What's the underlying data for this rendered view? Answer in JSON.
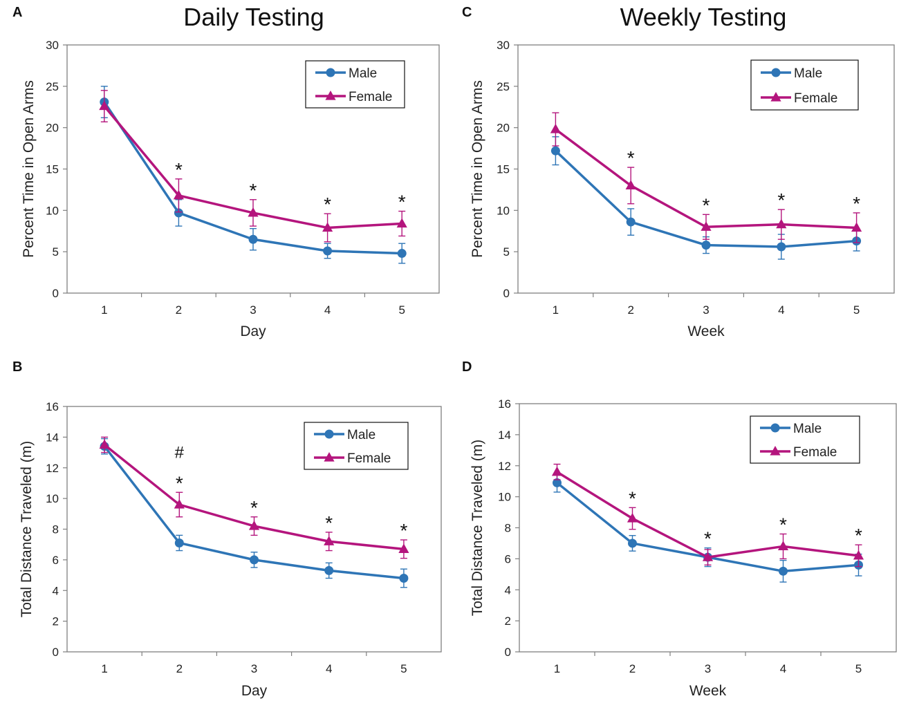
{
  "figure": {
    "column_titles": [
      "Daily Testing",
      "Weekly Testing"
    ],
    "colors": {
      "male": "#2e75b6",
      "female": "#b4157d"
    }
  },
  "chart_data": [
    {
      "panel": "A",
      "type": "line",
      "title": "Daily Testing",
      "xlabel": "Day",
      "ylabel": "Percent Time in Open Arms",
      "categories": [
        "1",
        "2",
        "3",
        "4",
        "5"
      ],
      "ylim": [
        0,
        30
      ],
      "yticks": [
        0,
        5,
        10,
        15,
        20,
        25,
        30
      ],
      "legend": "top-right",
      "series": [
        {
          "name": "Male",
          "marker": "circle",
          "values": [
            23.1,
            9.7,
            6.5,
            5.1,
            4.8
          ],
          "errors": [
            1.9,
            1.6,
            1.3,
            0.9,
            1.2
          ]
        },
        {
          "name": "Female",
          "marker": "triangle",
          "values": [
            22.6,
            11.8,
            9.7,
            7.9,
            8.4
          ],
          "errors": [
            1.9,
            2.0,
            1.6,
            1.7,
            1.5
          ]
        }
      ],
      "annotations": [
        {
          "category": "2",
          "text": "*"
        },
        {
          "category": "3",
          "text": "*"
        },
        {
          "category": "4",
          "text": "*"
        },
        {
          "category": "5",
          "text": "*"
        }
      ]
    },
    {
      "panel": "B",
      "type": "line",
      "title": "",
      "xlabel": "Day",
      "ylabel": "Total Distance Traveled (m)",
      "categories": [
        "1",
        "2",
        "3",
        "4",
        "5"
      ],
      "ylim": [
        0,
        16
      ],
      "yticks": [
        0,
        2,
        4,
        6,
        8,
        10,
        12,
        14,
        16
      ],
      "legend": "top-right",
      "series": [
        {
          "name": "Male",
          "marker": "circle",
          "values": [
            13.4,
            7.1,
            6.0,
            5.3,
            4.8
          ],
          "errors": [
            0.5,
            0.5,
            0.5,
            0.5,
            0.6
          ]
        },
        {
          "name": "Female",
          "marker": "triangle",
          "values": [
            13.5,
            9.6,
            8.2,
            7.2,
            6.7
          ],
          "errors": [
            0.5,
            0.8,
            0.6,
            0.6,
            0.6
          ]
        }
      ],
      "annotations": [
        {
          "category": "2",
          "text": "*"
        },
        {
          "category": "2",
          "text": "#",
          "level": 2
        },
        {
          "category": "3",
          "text": "*"
        },
        {
          "category": "4",
          "text": "*"
        },
        {
          "category": "5",
          "text": "*"
        }
      ]
    },
    {
      "panel": "C",
      "type": "line",
      "title": "Weekly Testing",
      "xlabel": "Week",
      "ylabel": "Percent Time in Open Arms",
      "categories": [
        "1",
        "2",
        "3",
        "4",
        "5"
      ],
      "ylim": [
        0,
        30
      ],
      "yticks": [
        0,
        5,
        10,
        15,
        20,
        25,
        30
      ],
      "legend": "top-right",
      "series": [
        {
          "name": "Male",
          "marker": "circle",
          "values": [
            17.2,
            8.6,
            5.8,
            5.6,
            6.3
          ],
          "errors": [
            1.7,
            1.6,
            1.0,
            1.5,
            1.2
          ]
        },
        {
          "name": "Female",
          "marker": "triangle",
          "values": [
            19.8,
            13.0,
            8.0,
            8.3,
            7.9
          ],
          "errors": [
            2.0,
            2.2,
            1.5,
            1.8,
            1.8
          ]
        }
      ],
      "annotations": [
        {
          "category": "2",
          "text": "*"
        },
        {
          "category": "3",
          "text": "*"
        },
        {
          "category": "4",
          "text": "*"
        },
        {
          "category": "5",
          "text": "*"
        }
      ]
    },
    {
      "panel": "D",
      "type": "line",
      "title": "",
      "xlabel": "Week",
      "ylabel": "Total Distance Traveled (m)",
      "categories": [
        "1",
        "2",
        "3",
        "4",
        "5"
      ],
      "ylim": [
        0,
        16
      ],
      "yticks": [
        0,
        2,
        4,
        6,
        8,
        10,
        12,
        14,
        16
      ],
      "legend": "top-right",
      "series": [
        {
          "name": "Male",
          "marker": "circle",
          "values": [
            10.9,
            7.0,
            6.1,
            5.2,
            5.6
          ],
          "errors": [
            0.6,
            0.5,
            0.6,
            0.7,
            0.7
          ]
        },
        {
          "name": "Female",
          "marker": "triangle",
          "values": [
            11.6,
            8.6,
            6.1,
            6.8,
            6.2
          ],
          "errors": [
            0.5,
            0.7,
            0.5,
            0.8,
            0.7
          ]
        }
      ],
      "annotations": [
        {
          "category": "2",
          "text": "*"
        },
        {
          "category": "3",
          "text": "*"
        },
        {
          "category": "4",
          "text": "*"
        },
        {
          "category": "5",
          "text": "*"
        }
      ]
    }
  ]
}
